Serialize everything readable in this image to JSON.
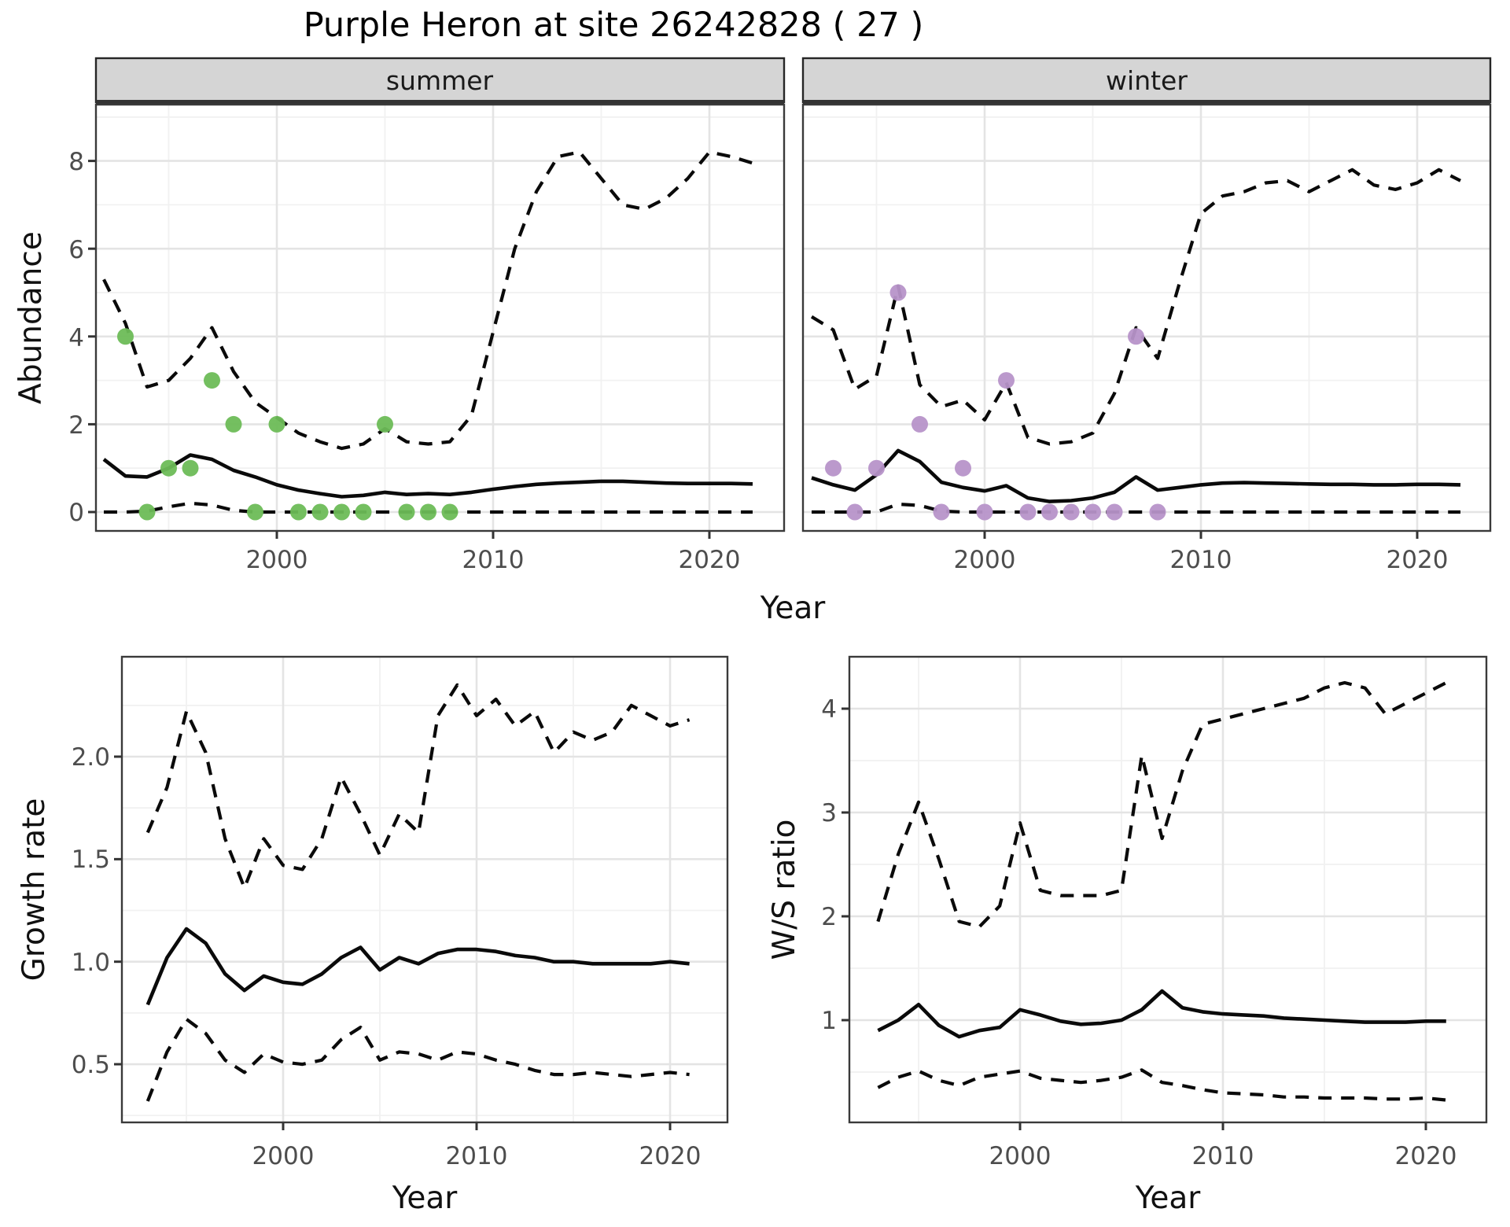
{
  "chart_data": {
    "type": "line",
    "subtype": "faceted time-series with dashed 95% CI bounds, solid median line and observed count points",
    "figure_title": "Purple Heron at site 26242828 ( 27 )",
    "top_row": {
      "ylabel": "Abundance",
      "xlabel": "Year",
      "x_ticks": [
        2000,
        2010,
        2020
      ],
      "x_tick_labels": [
        "2000",
        "2010",
        "2020"
      ],
      "y_ticks": [
        0,
        2,
        4,
        6,
        8
      ],
      "y_tick_labels": [
        "0",
        "2",
        "4",
        "6",
        "8"
      ],
      "xlim": [
        1991.6,
        2023.4
      ],
      "ylim": [
        -0.4,
        9.3
      ],
      "grid": "on",
      "years": [
        1992,
        1993,
        1994,
        1995,
        1996,
        1997,
        1998,
        1999,
        2000,
        2001,
        2002,
        2003,
        2004,
        2005,
        2006,
        2007,
        2008,
        2009,
        2010,
        2011,
        2012,
        2013,
        2014,
        2015,
        2016,
        2017,
        2018,
        2019,
        2020,
        2021,
        2022
      ],
      "obs_years": [
        1993,
        1994,
        1995,
        1996,
        1997,
        1998,
        1999,
        2000,
        2001,
        2002,
        2003,
        2004,
        2005,
        2006,
        2007,
        2008
      ],
      "panels": [
        {
          "facet": "summer",
          "point_color": "#6dbc57",
          "obs": [
            4,
            0,
            1,
            1,
            3,
            2,
            0,
            2,
            0,
            0,
            0,
            0,
            2,
            0,
            0,
            0
          ],
          "upper": [
            5.3,
            4.3,
            2.85,
            3.0,
            3.5,
            4.2,
            3.2,
            2.5,
            2.15,
            1.8,
            1.6,
            1.45,
            1.55,
            1.9,
            1.6,
            1.55,
            1.6,
            2.2,
            4.1,
            6.0,
            7.3,
            8.1,
            8.2,
            7.6,
            7.0,
            6.9,
            7.15,
            7.6,
            8.2,
            8.1,
            7.95
          ],
          "median": [
            1.2,
            0.82,
            0.8,
            1.0,
            1.3,
            1.2,
            0.95,
            0.8,
            0.62,
            0.5,
            0.42,
            0.35,
            0.38,
            0.45,
            0.4,
            0.42,
            0.4,
            0.45,
            0.52,
            0.58,
            0.63,
            0.66,
            0.68,
            0.7,
            0.7,
            0.68,
            0.66,
            0.65,
            0.65,
            0.65,
            0.64
          ],
          "lower": [
            0,
            0,
            0.02,
            0.12,
            0.2,
            0.16,
            0.04,
            0,
            0,
            0,
            0,
            0,
            0,
            0,
            0,
            0,
            0,
            0,
            0,
            0,
            0,
            0,
            0,
            0,
            0,
            0,
            0,
            0,
            0,
            0,
            0
          ]
        },
        {
          "facet": "winter",
          "point_color": "#b794c9",
          "obs": [
            1,
            0,
            1,
            5,
            2,
            0,
            1,
            0,
            3,
            0,
            0,
            0,
            0,
            0,
            4,
            0
          ],
          "upper": [
            4.45,
            4.15,
            2.8,
            3.1,
            5.15,
            2.9,
            2.4,
            2.55,
            2.1,
            2.95,
            1.7,
            1.55,
            1.6,
            1.8,
            2.7,
            4.2,
            3.5,
            5.2,
            6.8,
            7.2,
            7.3,
            7.5,
            7.55,
            7.3,
            7.55,
            7.8,
            7.45,
            7.35,
            7.5,
            7.8,
            7.55
          ],
          "median": [
            0.78,
            0.62,
            0.5,
            0.85,
            1.4,
            1.15,
            0.68,
            0.56,
            0.48,
            0.6,
            0.32,
            0.24,
            0.26,
            0.32,
            0.45,
            0.8,
            0.5,
            0.56,
            0.62,
            0.66,
            0.67,
            0.66,
            0.65,
            0.64,
            0.63,
            0.63,
            0.62,
            0.62,
            0.63,
            0.63,
            0.62
          ],
          "lower": [
            0,
            0,
            0,
            0,
            0.18,
            0.15,
            0.02,
            0,
            0,
            0,
            0,
            0,
            0,
            0,
            0,
            0,
            0,
            0,
            0,
            0,
            0,
            0,
            0,
            0,
            0,
            0,
            0,
            0,
            0,
            0,
            0
          ]
        }
      ]
    },
    "growth_panel": {
      "ylabel": "Growth rate",
      "xlabel": "Year",
      "x_ticks": [
        2000,
        2010,
        2020
      ],
      "x_tick_labels": [
        "2000",
        "2010",
        "2020"
      ],
      "y_ticks": [
        0.5,
        1.0,
        1.5,
        2.0
      ],
      "y_tick_labels": [
        "0.5",
        "1.0",
        "1.5",
        "2.0"
      ],
      "xlim": [
        1991.7,
        2023.0
      ],
      "ylim": [
        0.22,
        2.49
      ],
      "grid": "on",
      "years": [
        1993,
        1994,
        1995,
        1996,
        1997,
        1998,
        1999,
        2000,
        2001,
        2002,
        2003,
        2004,
        2005,
        2006,
        2007,
        2008,
        2009,
        2010,
        2011,
        2012,
        2013,
        2014,
        2015,
        2016,
        2017,
        2018,
        2019,
        2020,
        2021
      ],
      "upper": [
        1.63,
        1.85,
        2.22,
        2.02,
        1.6,
        1.36,
        1.6,
        1.47,
        1.45,
        1.6,
        1.9,
        1.72,
        1.52,
        1.72,
        1.63,
        2.2,
        2.35,
        2.2,
        2.28,
        2.15,
        2.22,
        2.02,
        2.12,
        2.08,
        2.12,
        2.25,
        2.2,
        2.15,
        2.18
      ],
      "median": [
        0.79,
        1.02,
        1.16,
        1.09,
        0.94,
        0.86,
        0.93,
        0.9,
        0.89,
        0.94,
        1.02,
        1.07,
        0.96,
        1.02,
        0.99,
        1.04,
        1.06,
        1.06,
        1.05,
        1.03,
        1.02,
        1.0,
        1.0,
        0.99,
        0.99,
        0.99,
        0.99,
        1.0,
        0.99
      ],
      "lower": [
        0.32,
        0.56,
        0.72,
        0.65,
        0.52,
        0.46,
        0.55,
        0.51,
        0.5,
        0.52,
        0.62,
        0.68,
        0.52,
        0.56,
        0.55,
        0.52,
        0.56,
        0.55,
        0.52,
        0.5,
        0.47,
        0.45,
        0.45,
        0.46,
        0.45,
        0.44,
        0.45,
        0.46,
        0.45
      ]
    },
    "ws_panel": {
      "ylabel": "W/S ratio",
      "xlabel": "Year",
      "x_ticks": [
        2000,
        2010,
        2020
      ],
      "x_tick_labels": [
        "2000",
        "2010",
        "2020"
      ],
      "y_ticks": [
        1,
        2,
        3,
        4
      ],
      "y_tick_labels": [
        "1",
        "2",
        "3",
        "4"
      ],
      "xlim": [
        1991.6,
        2023.0
      ],
      "ylim": [
        0.0,
        4.5
      ],
      "grid": "on",
      "years": [
        1993,
        1994,
        1995,
        1996,
        1997,
        1998,
        1999,
        2000,
        2001,
        2002,
        2003,
        2004,
        2005,
        2006,
        2007,
        2008,
        2009,
        2010,
        2011,
        2012,
        2013,
        2014,
        2015,
        2016,
        2017,
        2018,
        2019,
        2020,
        2021
      ],
      "upper": [
        1.95,
        2.6,
        3.1,
        2.55,
        1.95,
        1.9,
        2.1,
        2.9,
        2.25,
        2.2,
        2.2,
        2.2,
        2.25,
        3.55,
        2.75,
        3.4,
        3.85,
        3.9,
        3.95,
        4.0,
        4.05,
        4.1,
        4.2,
        4.25,
        4.2,
        3.95,
        4.05,
        4.15,
        4.25
      ],
      "median": [
        0.9,
        1.0,
        1.15,
        0.95,
        0.84,
        0.9,
        0.93,
        1.1,
        1.05,
        0.99,
        0.96,
        0.97,
        1.0,
        1.1,
        1.28,
        1.12,
        1.08,
        1.06,
        1.05,
        1.04,
        1.02,
        1.01,
        1.0,
        0.99,
        0.98,
        0.98,
        0.98,
        0.99,
        0.99
      ],
      "lower": [
        0.35,
        0.45,
        0.51,
        0.42,
        0.37,
        0.45,
        0.48,
        0.51,
        0.44,
        0.42,
        0.4,
        0.42,
        0.45,
        0.52,
        0.4,
        0.37,
        0.33,
        0.3,
        0.29,
        0.28,
        0.26,
        0.26,
        0.25,
        0.25,
        0.25,
        0.24,
        0.24,
        0.25,
        0.23
      ]
    },
    "style": {
      "ci_line_color": "#0a0a0a",
      "median_line_color": "#0a0a0a",
      "strip_fill": "#d5d5d5",
      "panel_border": "#3a3a3a",
      "grid_major": "#e4e4e4",
      "grid_minor": "#f1f1f1"
    }
  }
}
